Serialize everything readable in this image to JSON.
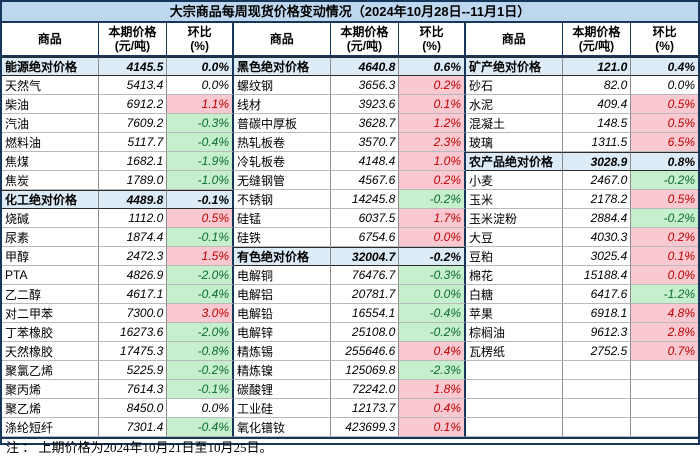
{
  "title": "大宗商品每周现货价格变动情况（2024年10月28日--11月1日）",
  "footnote": "注 ： 上期价格为2024年10月21日至10月25日。",
  "columns": {
    "commodity": "商品",
    "price_line1": "本期价格",
    "price_line2": "(元/吨)",
    "pct_line1": "环比",
    "pct_line2": "(%)"
  },
  "colors": {
    "title_bg": "#BDD7EE",
    "category_bg": "#DDEBF7",
    "increase_bg": "#F9C8D0",
    "increase_text": "#C00000",
    "decrease_bg": "#C6EFCE",
    "decrease_text": "#0B6B2E",
    "border_dark": "#16365c"
  },
  "groups": [
    {
      "rows": [
        {
          "name": "能源绝对价格",
          "price": "4145.5",
          "pct": "0.0%",
          "type": "cat"
        },
        {
          "name": "天然气",
          "price": "5413.4",
          "pct": "0.0%",
          "type": "flat"
        },
        {
          "name": "柴油",
          "price": "6912.2",
          "pct": "1.1%",
          "type": "up"
        },
        {
          "name": "汽油",
          "price": "7609.2",
          "pct": "-0.3%",
          "type": "down"
        },
        {
          "name": "燃料油",
          "price": "5117.7",
          "pct": "-0.4%",
          "type": "down"
        },
        {
          "name": "焦煤",
          "price": "1682.1",
          "pct": "-1.9%",
          "type": "down"
        },
        {
          "name": "焦炭",
          "price": "1789.0",
          "pct": "-1.0%",
          "type": "down"
        },
        {
          "name": "化工绝对价格",
          "price": "4489.8",
          "pct": "-0.1%",
          "type": "cat"
        },
        {
          "name": "烧碱",
          "price": "1112.0",
          "pct": "0.5%",
          "type": "up"
        },
        {
          "name": "尿素",
          "price": "1874.4",
          "pct": "-0.1%",
          "type": "down"
        },
        {
          "name": "甲醇",
          "price": "2472.3",
          "pct": "1.5%",
          "type": "up"
        },
        {
          "name": "PTA",
          "price": "4826.9",
          "pct": "-2.0%",
          "type": "down"
        },
        {
          "name": "乙二醇",
          "price": "4617.1",
          "pct": "-0.4%",
          "type": "down"
        },
        {
          "name": "对二甲苯",
          "price": "7300.0",
          "pct": "3.0%",
          "type": "up"
        },
        {
          "name": "丁苯橡胶",
          "price": "16273.6",
          "pct": "-2.0%",
          "type": "down"
        },
        {
          "name": "天然橡胶",
          "price": "17475.3",
          "pct": "-0.8%",
          "type": "down"
        },
        {
          "name": "聚氯乙烯",
          "price": "5225.9",
          "pct": "-0.2%",
          "type": "down"
        },
        {
          "name": "聚丙烯",
          "price": "7614.3",
          "pct": "-0.1%",
          "type": "down"
        },
        {
          "name": "聚乙烯",
          "price": "8450.0",
          "pct": "0.0%",
          "type": "flat"
        },
        {
          "name": "涤纶短纤",
          "price": "7301.4",
          "pct": "-0.4%",
          "type": "down"
        }
      ]
    },
    {
      "rows": [
        {
          "name": "黑色绝对价格",
          "price": "4640.8",
          "pct": "0.6%",
          "type": "cat"
        },
        {
          "name": "螺纹钢",
          "price": "3656.3",
          "pct": "0.2%",
          "type": "up"
        },
        {
          "name": "线材",
          "price": "3923.6",
          "pct": "0.1%",
          "type": "up"
        },
        {
          "name": "普碳中厚板",
          "price": "3628.7",
          "pct": "1.2%",
          "type": "up"
        },
        {
          "name": "热轧板卷",
          "price": "3570.7",
          "pct": "2.3%",
          "type": "up"
        },
        {
          "name": "冷轧板卷",
          "price": "4148.4",
          "pct": "1.0%",
          "type": "up"
        },
        {
          "name": "无缝钢管",
          "price": "4567.6",
          "pct": "0.2%",
          "type": "up"
        },
        {
          "name": "不锈钢",
          "price": "14245.8",
          "pct": "-0.2%",
          "type": "down"
        },
        {
          "name": "硅锰",
          "price": "6037.5",
          "pct": "1.7%",
          "type": "up"
        },
        {
          "name": "硅铁",
          "price": "6754.6",
          "pct": "0.0%",
          "type": "up"
        },
        {
          "name": "有色绝对价格",
          "price": "32004.7",
          "pct": "-0.2%",
          "type": "cat"
        },
        {
          "name": "电解铜",
          "price": "76476.7",
          "pct": "-0.3%",
          "type": "down"
        },
        {
          "name": "电解铝",
          "price": "20781.7",
          "pct": "0.0%",
          "type": "down"
        },
        {
          "name": "电解铅",
          "price": "16554.1",
          "pct": "-0.4%",
          "type": "down"
        },
        {
          "name": "电解锌",
          "price": "25108.0",
          "pct": "-0.2%",
          "type": "down"
        },
        {
          "name": "精炼锡",
          "price": "255646.6",
          "pct": "0.4%",
          "type": "up"
        },
        {
          "name": "精炼镍",
          "price": "125069.8",
          "pct": "-2.3%",
          "type": "down"
        },
        {
          "name": "碳酸锂",
          "price": "72242.0",
          "pct": "1.8%",
          "type": "up"
        },
        {
          "name": "工业硅",
          "price": "12173.7",
          "pct": "0.4%",
          "type": "up"
        },
        {
          "name": "氧化镨钕",
          "price": "423699.3",
          "pct": "0.1%",
          "type": "up"
        }
      ]
    },
    {
      "rows": [
        {
          "name": "矿产绝对价格",
          "price": "121.0",
          "pct": "0.4%",
          "type": "cat"
        },
        {
          "name": "砂石",
          "price": "82.0",
          "pct": "0.0%",
          "type": "flat"
        },
        {
          "name": "水泥",
          "price": "409.4",
          "pct": "0.5%",
          "type": "up"
        },
        {
          "name": "混凝土",
          "price": "148.5",
          "pct": "0.5%",
          "type": "up"
        },
        {
          "name": "玻璃",
          "price": "1311.5",
          "pct": "6.5%",
          "type": "up"
        },
        {
          "name": "农产品绝对价格",
          "price": "3028.9",
          "pct": "0.8%",
          "type": "cat"
        },
        {
          "name": "小麦",
          "price": "2467.0",
          "pct": "-0.2%",
          "type": "down"
        },
        {
          "name": "玉米",
          "price": "2178.2",
          "pct": "0.5%",
          "type": "up"
        },
        {
          "name": "玉米淀粉",
          "price": "2884.4",
          "pct": "-0.2%",
          "type": "down"
        },
        {
          "name": "大豆",
          "price": "4030.3",
          "pct": "0.2%",
          "type": "up"
        },
        {
          "name": "豆粕",
          "price": "3025.4",
          "pct": "0.1%",
          "type": "up"
        },
        {
          "name": "棉花",
          "price": "15188.4",
          "pct": "0.0%",
          "type": "up"
        },
        {
          "name": "白糖",
          "price": "6417.6",
          "pct": "-1.2%",
          "type": "down"
        },
        {
          "name": "苹果",
          "price": "6918.1",
          "pct": "4.8%",
          "type": "up"
        },
        {
          "name": "棕榈油",
          "price": "9612.3",
          "pct": "2.8%",
          "type": "up"
        },
        {
          "name": "瓦楞纸",
          "price": "2752.5",
          "pct": "0.7%",
          "type": "up"
        },
        {
          "name": "",
          "price": "",
          "pct": "",
          "type": "empty"
        },
        {
          "name": "",
          "price": "",
          "pct": "",
          "type": "empty"
        },
        {
          "name": "",
          "price": "",
          "pct": "",
          "type": "empty"
        },
        {
          "name": "",
          "price": "",
          "pct": "",
          "type": "empty"
        }
      ]
    }
  ]
}
